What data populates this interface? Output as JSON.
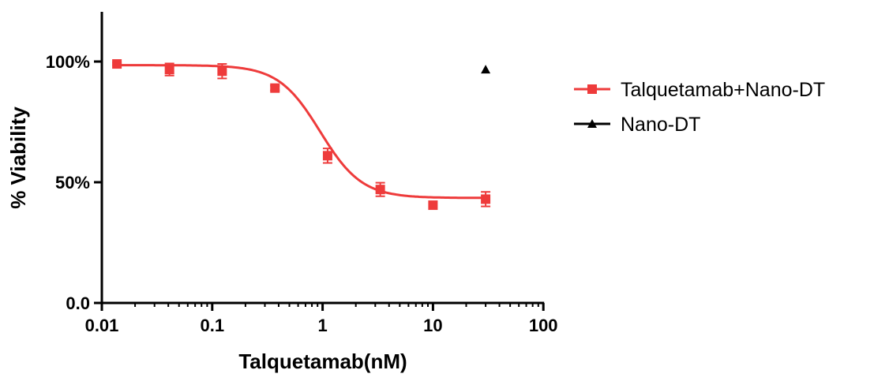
{
  "chart_data": {
    "type": "scatter",
    "title": "",
    "xlabel": "Talquetamab(nM)",
    "ylabel": "% Viability",
    "xscale": "log",
    "xlim": [
      0.01,
      100
    ],
    "ylim": [
      0,
      120
    ],
    "xticks": [
      {
        "v": 0.01,
        "label": "0.01"
      },
      {
        "v": 0.1,
        "label": "0.1"
      },
      {
        "v": 1,
        "label": "1"
      },
      {
        "v": 10,
        "label": "10"
      },
      {
        "v": 100,
        "label": "100"
      }
    ],
    "yticks": [
      {
        "v": 0,
        "label": "0.0"
      },
      {
        "v": 50,
        "label": "50%"
      },
      {
        "v": 100,
        "label": "100%"
      }
    ],
    "grid": false,
    "legend_position": "right",
    "series": [
      {
        "name": "Talquetamab+Nano-DT",
        "color": "#ee3b3b",
        "marker": "square",
        "x": [
          0.0137,
          0.041,
          0.123,
          0.37,
          1.11,
          3.33,
          10,
          30
        ],
        "y": [
          99,
          96.7,
          96,
          89,
          61,
          47,
          40.5,
          43
        ],
        "error": [
          0.5,
          2.5,
          3,
          1,
          3,
          2.8,
          0,
          3
        ],
        "fit": {
          "model": "sigmoidal dose-response",
          "top": 98.5,
          "bottom": 43.5,
          "ic50": 0.95,
          "hill": 2.3
        }
      },
      {
        "name": "Nano-DT",
        "color": "#000000",
        "marker": "triangle",
        "x": [
          30
        ],
        "y": [
          96.7
        ],
        "error": [
          0
        ]
      }
    ]
  }
}
